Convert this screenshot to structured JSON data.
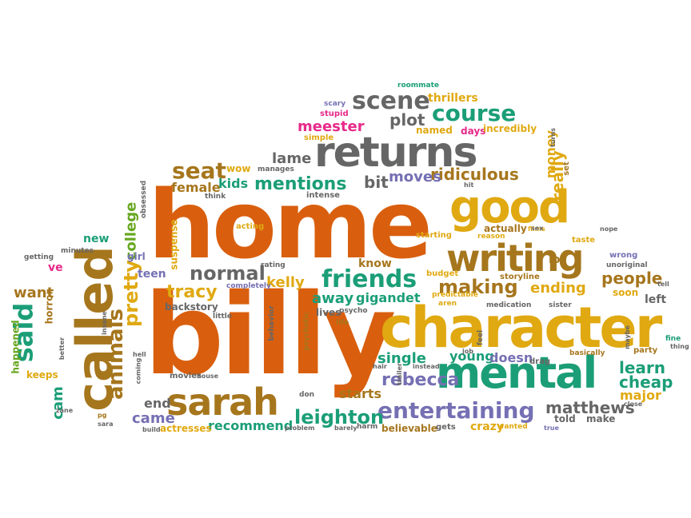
{
  "palette": {
    "orange": "#D95F0E",
    "gold": "#E0A911",
    "teal": "#1B9E77",
    "purple": "#7570B3",
    "magenta": "#E7298A",
    "olive": "#A6761D",
    "green": "#66A61E",
    "gray": "#666666"
  },
  "words": [
    {
      "text": "home",
      "color": "orange"
    },
    {
      "text": "billy",
      "color": "orange"
    },
    {
      "text": "character",
      "color": "gold"
    },
    {
      "text": "called",
      "color": "olive"
    },
    {
      "text": "returns",
      "color": "gray"
    },
    {
      "text": "mental",
      "color": "teal"
    },
    {
      "text": "good",
      "color": "gold"
    },
    {
      "text": "writing",
      "color": "olive"
    },
    {
      "text": "sarah",
      "color": "olive"
    },
    {
      "text": "entertaining",
      "color": "purple"
    },
    {
      "text": "friends",
      "color": "teal"
    },
    {
      "text": "course",
      "color": "teal"
    },
    {
      "text": "scene",
      "color": "gray"
    },
    {
      "text": "said",
      "color": "teal"
    },
    {
      "text": "animals",
      "color": "olive"
    },
    {
      "text": "pretty",
      "color": "gold"
    },
    {
      "text": "seat",
      "color": "olive"
    },
    {
      "text": "normal",
      "color": "gray"
    },
    {
      "text": "making",
      "color": "olive"
    },
    {
      "text": "mentions",
      "color": "teal"
    },
    {
      "text": "leighton",
      "color": "teal"
    },
    {
      "text": "rebecca",
      "color": "purple"
    },
    {
      "text": "people",
      "color": "olive"
    },
    {
      "text": "meester",
      "color": "magenta"
    },
    {
      "text": "matthews",
      "color": "gray"
    },
    {
      "text": "tracy",
      "color": "gold"
    },
    {
      "text": "ridiculous",
      "color": "olive"
    },
    {
      "text": "college",
      "color": "green"
    },
    {
      "text": "lame",
      "color": "gray"
    },
    {
      "text": "plot",
      "color": "gray"
    },
    {
      "text": "bit",
      "color": "gray"
    },
    {
      "text": "moves",
      "color": "purple"
    },
    {
      "text": "really",
      "color": "gold"
    },
    {
      "text": "money",
      "color": "gold"
    },
    {
      "text": "learn",
      "color": "teal"
    },
    {
      "text": "cheap",
      "color": "teal"
    },
    {
      "text": "ending",
      "color": "gold"
    },
    {
      "text": "kelly",
      "color": "gold"
    },
    {
      "text": "away",
      "color": "teal"
    },
    {
      "text": "single",
      "color": "teal"
    },
    {
      "text": "young",
      "color": "teal"
    },
    {
      "text": "doesn",
      "color": "purple"
    },
    {
      "text": "starts",
      "color": "olive"
    },
    {
      "text": "came",
      "color": "purple"
    },
    {
      "text": "end",
      "color": "gray"
    },
    {
      "text": "want",
      "color": "olive"
    },
    {
      "text": "cam",
      "color": "teal"
    },
    {
      "text": "recommend",
      "color": "teal"
    },
    {
      "text": "female",
      "color": "olive"
    },
    {
      "text": "kids",
      "color": "teal"
    },
    {
      "text": "gigandet",
      "color": "teal"
    },
    {
      "text": "know",
      "color": "olive"
    },
    {
      "text": "teen",
      "color": "purple"
    },
    {
      "text": "major",
      "color": "gold"
    },
    {
      "text": "left",
      "color": "gray"
    },
    {
      "text": "lot",
      "color": "olive"
    },
    {
      "text": "thrillers",
      "color": "gold"
    },
    {
      "text": "new",
      "color": "teal"
    },
    {
      "text": "ve",
      "color": "magenta"
    },
    {
      "text": "told",
      "color": "gray"
    },
    {
      "text": "make",
      "color": "gray"
    },
    {
      "text": "actresses",
      "color": "gold"
    },
    {
      "text": "believable",
      "color": "olive"
    },
    {
      "text": "crazy",
      "color": "gold"
    },
    {
      "text": "happened",
      "color": "green"
    },
    {
      "text": "keeps",
      "color": "gold"
    },
    {
      "text": "horror",
      "color": "olive"
    },
    {
      "text": "backstory",
      "color": "gray"
    },
    {
      "text": "soon",
      "color": "gold"
    },
    {
      "text": "girl",
      "color": "purple"
    },
    {
      "text": "wow",
      "color": "gold"
    },
    {
      "text": "named",
      "color": "gold"
    },
    {
      "text": "days",
      "color": "magenta"
    },
    {
      "text": "incredibly",
      "color": "gold"
    },
    {
      "text": "simple",
      "color": "gold"
    },
    {
      "text": "stupid",
      "color": "magenta"
    },
    {
      "text": "scary",
      "color": "purple"
    },
    {
      "text": "roommate",
      "color": "teal"
    },
    {
      "text": "manages",
      "color": "gray"
    },
    {
      "text": "think",
      "color": "gray"
    },
    {
      "text": "intense",
      "color": "gray"
    },
    {
      "text": "acting",
      "color": "gold"
    },
    {
      "text": "suspense",
      "color": "gold"
    },
    {
      "text": "obsessed",
      "color": "gray"
    },
    {
      "text": "minutes",
      "color": "gray"
    },
    {
      "text": "getting",
      "color": "gray"
    },
    {
      "text": "rating",
      "color": "gray"
    },
    {
      "text": "completely",
      "color": "purple"
    },
    {
      "text": "budget",
      "color": "gold"
    },
    {
      "text": "starting",
      "color": "gold"
    },
    {
      "text": "actually",
      "color": "olive"
    },
    {
      "text": "reason",
      "color": "gold"
    },
    {
      "text": "storyline",
      "color": "olive"
    },
    {
      "text": "predictable",
      "color": "gold"
    },
    {
      "text": "aren",
      "color": "gold"
    },
    {
      "text": "films",
      "color": "gold"
    },
    {
      "text": "taste",
      "color": "gold"
    },
    {
      "text": "wrong",
      "color": "purple"
    },
    {
      "text": "unoriginal",
      "color": "gray"
    },
    {
      "text": "medication",
      "color": "gray"
    },
    {
      "text": "sister",
      "color": "gray"
    },
    {
      "text": "little",
      "color": "gray"
    },
    {
      "text": "behavior",
      "color": "gray"
    },
    {
      "text": "psychotic",
      "color": "olive"
    },
    {
      "text": "psycho",
      "color": "gray"
    },
    {
      "text": "lives",
      "color": "gray"
    },
    {
      "text": "life",
      "color": "olive"
    },
    {
      "text": "feel",
      "color": "gray"
    },
    {
      "text": "job",
      "color": "gray"
    },
    {
      "text": "drag",
      "color": "gray"
    },
    {
      "text": "basically",
      "color": "olive"
    },
    {
      "text": "party",
      "color": "olive"
    },
    {
      "text": "maybe",
      "color": "gray"
    },
    {
      "text": "fine",
      "color": "teal"
    },
    {
      "text": "thing",
      "color": "gray"
    },
    {
      "text": "tell",
      "color": "gray"
    },
    {
      "text": "insane",
      "color": "gray"
    },
    {
      "text": "better",
      "color": "gray"
    },
    {
      "text": "hell",
      "color": "gray"
    },
    {
      "text": "coming",
      "color": "gray"
    },
    {
      "text": "movies",
      "color": "gray"
    },
    {
      "text": "house",
      "color": "gray"
    },
    {
      "text": "don",
      "color": "gray"
    },
    {
      "text": "hair",
      "color": "gray"
    },
    {
      "text": "instead",
      "color": "gray"
    },
    {
      "text": "trailer",
      "color": "gray"
    },
    {
      "text": "zane",
      "color": "gray"
    },
    {
      "text": "pg",
      "color": "olive"
    },
    {
      "text": "sara",
      "color": "gray"
    },
    {
      "text": "build",
      "color": "gray"
    },
    {
      "text": "problem",
      "color": "gray"
    },
    {
      "text": "barely",
      "color": "gray"
    },
    {
      "text": "harm",
      "color": "gray"
    },
    {
      "text": "gets",
      "color": "gray"
    },
    {
      "text": "wanted",
      "color": "gold"
    },
    {
      "text": "true",
      "color": "purple"
    },
    {
      "text": "close",
      "color": "gray"
    },
    {
      "text": "sex",
      "color": "gray"
    },
    {
      "text": "nope",
      "color": "gray"
    },
    {
      "text": "set",
      "color": "olive"
    },
    {
      "text": "hit",
      "color": "gray"
    },
    {
      "text": "turns",
      "color": "gray"
    }
  ]
}
